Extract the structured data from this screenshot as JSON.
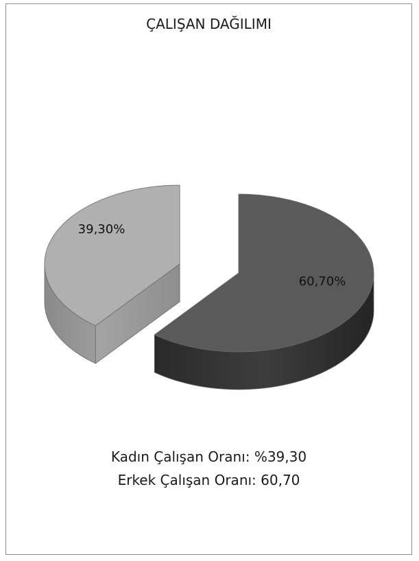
{
  "chart_data": {
    "type": "pie",
    "title": "ÇALIŞAN DAĞILIMI",
    "slices": [
      {
        "label": "39,30%",
        "value": 39.3,
        "color": "#b0b0b0"
      },
      {
        "label": "60,70%",
        "value": 60.7,
        "color": "#5a5a5a"
      }
    ],
    "exploded": true,
    "three_d": true
  },
  "summary": {
    "line1": "Kadın Çalışan Oranı: %39,30",
    "line2": "Erkek Çalışan Oranı: 60,70"
  }
}
